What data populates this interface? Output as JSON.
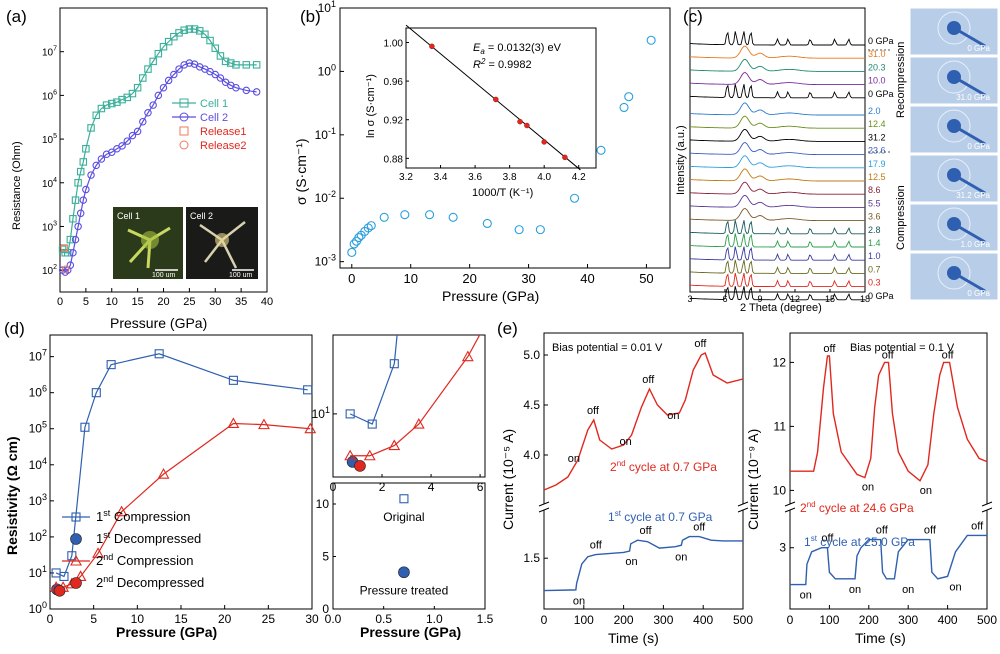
{
  "panel_labels": {
    "a": "(a)",
    "b": "(b)",
    "c": "(c)",
    "d": "(d)",
    "e": "(e)"
  },
  "colors": {
    "teal": "#3aaf9a",
    "purple": "#5b4ee0",
    "blue": "#2f5fb0",
    "red": "#e0281e",
    "cyan": "#2a9fdf",
    "orange": "#e8791e",
    "pink": "#f07858"
  },
  "chart_data": [
    {
      "id": "a",
      "type": "line",
      "xlabel": "Pressure (GPa)",
      "ylabel": "Resistance (Ohm)",
      "xlim": [
        0,
        40
      ],
      "xticks": [
        0,
        5,
        10,
        15,
        20,
        25,
        30,
        35,
        40
      ],
      "ylim_log10": [
        1.5,
        8
      ],
      "yticks": [
        "10^2",
        "10^3",
        "10^4",
        "10^5",
        "10^6",
        "10^7"
      ],
      "series": [
        {
          "name": "Cell 1",
          "color": "#3aaf9a",
          "marker": "square",
          "x": [
            0.5,
            1,
            1.5,
            2,
            2.5,
            3,
            3.5,
            4,
            4.5,
            5,
            6,
            7,
            8,
            9,
            10,
            11,
            12,
            13,
            14,
            15,
            16,
            17,
            18,
            19,
            20,
            21,
            22,
            23,
            24,
            25,
            26,
            27,
            28,
            29,
            30,
            31,
            32,
            33,
            34,
            36,
            38
          ],
          "y": [
            300,
            250,
            250,
            500,
            1500,
            4000,
            10000,
            18000,
            30000,
            60000,
            180000,
            350000,
            500000,
            600000,
            650000,
            700000,
            800000,
            900000,
            1100000,
            1500000,
            2500000,
            4000000,
            6000000,
            9000000,
            13000000,
            17000000,
            22000000,
            27000000,
            31000000,
            33000000,
            33000000,
            30000000,
            25000000,
            18000000,
            12000000,
            8000000,
            6000000,
            5500000,
            5000000,
            5000000,
            5000000
          ]
        },
        {
          "name": "Cell 2",
          "color": "#5b4ee0",
          "marker": "circle",
          "x": [
            0.5,
            1,
            1.5,
            2,
            2.5,
            3,
            3.5,
            4,
            4.5,
            5,
            6,
            7,
            8,
            9,
            10,
            11,
            12,
            13,
            14,
            15,
            16,
            17,
            18,
            19,
            20,
            21,
            22,
            23,
            24,
            25,
            26,
            27,
            28,
            29,
            30,
            31,
            32,
            33,
            34,
            36,
            38
          ],
          "y": [
            100,
            90,
            100,
            130,
            250,
            500,
            1000,
            2000,
            4000,
            7000,
            15000,
            25000,
            35000,
            45000,
            50000,
            60000,
            70000,
            90000,
            120000,
            150000,
            250000,
            400000,
            600000,
            1000000,
            1500000,
            2200000,
            3000000,
            4000000,
            5000000,
            5500000,
            5200000,
            4500000,
            4000000,
            3500000,
            3000000,
            2500000,
            2000000,
            1700000,
            1500000,
            1300000,
            1200000
          ]
        },
        {
          "name": "Release1",
          "color": "#f07858",
          "marker": "square",
          "x": [
            0.8
          ],
          "y": [
            320
          ]
        },
        {
          "name": "Release2",
          "color": "#f07858",
          "marker": "circle",
          "x": [
            1.1
          ],
          "y": [
            105
          ]
        }
      ],
      "inset_labels": [
        "Cell 1",
        "Cell 2"
      ],
      "inset_scale": "100 um"
    },
    {
      "id": "b",
      "type": "scatter",
      "xlabel": "Pressure (GPa)",
      "ylabel": "σ (S·cm⁻¹)",
      "xlim": [
        -2,
        54
      ],
      "xticks": [
        0,
        10,
        20,
        30,
        40,
        50
      ],
      "ylim_log10": [
        -3.1,
        1
      ],
      "yticks": [
        "10^-3",
        "10^-2",
        "10^-1",
        "10^0",
        "10^1"
      ],
      "series": [
        {
          "name": "σ",
          "color": "#2a9fdf",
          "x": [
            0,
            0.4,
            0.8,
            1.2,
            1.6,
            2.2,
            2.8,
            3.3,
            5.5,
            9,
            13.2,
            17.2,
            23,
            28.4,
            32,
            37.8,
            42.3,
            46.2,
            47,
            50.8
          ],
          "y": [
            0.0014,
            0.0019,
            0.0021,
            0.0024,
            0.0026,
            0.003,
            0.0034,
            0.0037,
            0.005,
            0.0055,
            0.0055,
            0.005,
            0.004,
            0.0032,
            0.0032,
            0.01,
            0.057,
            0.27,
            0.4,
            3.1
          ]
        }
      ],
      "inset": {
        "xlabel": "1000/T (K⁻¹)",
        "ylabel": "ln σ (S·cm⁻¹)",
        "xlim": [
          3.2,
          4.3
        ],
        "xticks": [
          "3.2",
          "3.4",
          "3.6",
          "3.8",
          "4.0",
          "4.2"
        ],
        "ylim": [
          0.87,
          1.015
        ],
        "yticks": [
          "0.88",
          "0.92",
          "0.96",
          "1.00"
        ],
        "x": [
          3.35,
          3.72,
          3.86,
          3.9,
          4.0,
          4.12
        ],
        "y": [
          0.996,
          0.941,
          0.918,
          0.914,
          0.897,
          0.881
        ],
        "fit_line": {
          "x": [
            3.2,
            4.21
          ],
          "y": [
            1.018,
            0.868
          ]
        },
        "ea_label": "E",
        "ea_sub": "a",
        "ea_value": " = 0.0132(3) eV",
        "r2_label": "R",
        "r2_sup": "2",
        "r2_value": " = 0.9982"
      }
    },
    {
      "id": "c",
      "type": "line",
      "xlabel": "2 Theta (degree)",
      "ylabel": "Intensity (a.u.)",
      "xlim": [
        3,
        18
      ],
      "xticks": [
        "3",
        "6",
        "9",
        "12",
        "15",
        "18"
      ],
      "pressure_labels": [
        "0 GPa",
        "31.0",
        "20.3",
        "10.0",
        "0 GPa",
        "2.0",
        "12.4",
        "31.2",
        "23.6",
        "17.9",
        "12.5",
        "8.6",
        "5.5",
        "3.6",
        "2.8",
        "1.4",
        "1.0",
        "0.7",
        "0.3",
        "0 GPa"
      ],
      "pressure_colors": [
        "#000000",
        "#e8791e",
        "#1f8a70",
        "#7a2c9e",
        "#000000",
        "#2b7bd0",
        "#6a8f1a",
        "#000000",
        "#3a5fc0",
        "#2a9fdf",
        "#c07a10",
        "#8a1f3a",
        "#5a3a9a",
        "#7a5a2a",
        "#1a5a5a",
        "#2b9f4a",
        "#3a3aa0",
        "#6a6a20",
        "#e0281e",
        "#000000"
      ],
      "group_labels": [
        "Recompression",
        "Compression"
      ],
      "images": [
        "0 GPa",
        "31.0 GPa",
        "0 GPa",
        "31.2 GPa",
        "1.0 GPa",
        "0 GPa"
      ]
    },
    {
      "id": "d",
      "type": "line",
      "xlabel": "Pressure (GPa)",
      "ylabel": "Resistivity (Ω cm)",
      "xlim": [
        0,
        30
      ],
      "xticks": [
        "0",
        "5",
        "10",
        "15",
        "20",
        "25",
        "30"
      ],
      "ylim_log10": [
        0,
        7.6
      ],
      "yticks": [
        "10^0",
        "10^1",
        "10^2",
        "10^3",
        "10^4",
        "10^5",
        "10^6",
        "10^7"
      ],
      "series": [
        {
          "name": "1st Compression",
          "color": "#2f5fb0",
          "marker": "square",
          "x": [
            0.7,
            1.6,
            2.5,
            4,
            5.3,
            7,
            12.5,
            21,
            29.5
          ],
          "y": [
            10,
            8,
            30,
            110000,
            1000000,
            6000000,
            12000000,
            2200000,
            1200000
          ]
        },
        {
          "name": "1st Decompressed",
          "color": "#2f5fb0",
          "marker": "dot",
          "x": [
            0.8
          ],
          "y": [
            3.5
          ]
        },
        {
          "name": "2nd Compression",
          "color": "#e0281e",
          "marker": "triangle",
          "x": [
            0.7,
            1.5,
            2.5,
            3.5,
            5.5,
            8.2,
            13,
            21,
            24.5,
            29.8
          ],
          "y": [
            4,
            4,
            5,
            8,
            35,
            500,
            5500,
            140000,
            130000,
            100000
          ]
        },
        {
          "name": "2nd Decompressed",
          "color": "#e0281e",
          "marker": "dot",
          "x": [
            1.1
          ],
          "y": [
            3.2
          ]
        }
      ],
      "legend": [
        {
          "pre": "1",
          "sup": "st",
          "post": " Compression"
        },
        {
          "pre": "1",
          "sup": "st",
          "post": " Decompressed"
        },
        {
          "pre": "2",
          "sup": "nd",
          "post": " Compression"
        },
        {
          "pre": "2",
          "sup": "nd",
          "post": " Decompressed"
        }
      ],
      "zoom": {
        "xticks": [
          "0",
          "2",
          "4",
          "6"
        ],
        "ytick": "10^1"
      },
      "bottom": {
        "xlim": [
          0,
          1.5
        ],
        "xticks": [
          "0.0",
          "0.5",
          "1.0",
          "1.5"
        ],
        "ylim": [
          0,
          12
        ],
        "yticks": [
          "0",
          "5",
          "10"
        ],
        "points": [
          {
            "label": "Original",
            "x": 0.7,
            "y": 10.5,
            "marker": "square"
          },
          {
            "label": "Pressure treated",
            "x": 0.7,
            "y": 3.5,
            "marker": "dot"
          }
        ],
        "xlabel": "Pressure (GPa)"
      }
    },
    {
      "id": "e1",
      "type": "line",
      "title": "Bias potential = 0.01 V",
      "xlabel": "Time (s)",
      "ylabel": "Current (10⁻⁵ A)",
      "xlim": [
        0,
        500
      ],
      "xticks": [
        "0",
        "100",
        "200",
        "300",
        "400",
        "500"
      ],
      "upper_yticks": [
        "4.0",
        "4.5",
        "5.0"
      ],
      "lower_ytick": "1.5",
      "series": [
        {
          "name": "2nd cycle at 0.7 GPa",
          "color": "#e0281e",
          "x": [
            0,
            30,
            60,
            85,
            110,
            125,
            140,
            170,
            200,
            220,
            245,
            265,
            285,
            310,
            340,
            355,
            375,
            395,
            405,
            425,
            460,
            500
          ],
          "y": [
            3.65,
            3.7,
            3.78,
            3.95,
            4.25,
            4.35,
            4.15,
            4.06,
            4.1,
            4.2,
            4.48,
            4.66,
            4.5,
            4.4,
            4.42,
            4.55,
            4.85,
            5.0,
            5.02,
            4.8,
            4.72,
            4.76
          ]
        },
        {
          "name": "1st cycle at 0.7 GPa",
          "color": "#2f5fb0",
          "x": [
            0,
            80,
            82,
            95,
            110,
            130,
            200,
            215,
            218,
            235,
            260,
            290,
            330,
            345,
            348,
            365,
            390,
            420,
            450,
            500
          ],
          "y": [
            1.05,
            1.06,
            1.15,
            1.42,
            1.52,
            1.55,
            1.58,
            1.6,
            1.7,
            1.75,
            1.73,
            1.64,
            1.66,
            1.68,
            1.75,
            1.8,
            1.8,
            1.75,
            1.74,
            1.74
          ]
        }
      ],
      "on_off": {
        "on": "on",
        "off": "off"
      },
      "red_cycle": {
        "pre": "2",
        "sup": "nd",
        "post": " cycle at 0.7 GPa"
      },
      "blue_cycle": {
        "pre": "1",
        "sup": "st",
        "post": " cycle at 0.7 GPa"
      }
    },
    {
      "id": "e2",
      "type": "line",
      "title": "Bias potential = 0.1 V",
      "xlabel": "Time (s)",
      "ylabel": "Current (10⁻⁹ A)",
      "xlim": [
        0,
        500
      ],
      "xticks": [
        "0",
        "100",
        "200",
        "300",
        "400",
        "500"
      ],
      "upper_yticks": [
        "10",
        "11",
        "12"
      ],
      "lower_ytick": "3",
      "series": [
        {
          "name": "2nd cycle at 24.6 GPa",
          "color": "#e0281e",
          "x": [
            0,
            40,
            60,
            70,
            85,
            95,
            100,
            110,
            130,
            170,
            190,
            205,
            215,
            225,
            240,
            250,
            260,
            275,
            300,
            330,
            350,
            365,
            380,
            390,
            405,
            425,
            450,
            480,
            500
          ],
          "y": [
            10.3,
            10.3,
            10.3,
            10.6,
            11.6,
            12.1,
            12.1,
            11.2,
            10.6,
            10.25,
            10.2,
            10.5,
            11.3,
            11.8,
            12.0,
            12.0,
            11.2,
            10.6,
            10.3,
            10.15,
            10.4,
            11.2,
            11.8,
            12.0,
            12.0,
            11.3,
            10.8,
            10.5,
            10.45
          ]
        },
        {
          "name": "1st cycle at 25.0 GPa",
          "color": "#2f5fb0",
          "x": [
            0,
            40,
            43,
            55,
            80,
            95,
            100,
            115,
            140,
            165,
            170,
            180,
            200,
            230,
            235,
            245,
            265,
            275,
            300,
            355,
            360,
            375,
            400,
            420,
            450,
            480,
            500
          ],
          "y": [
            2.55,
            2.55,
            2.8,
            2.95,
            3.0,
            3.0,
            2.7,
            2.62,
            2.62,
            2.62,
            2.9,
            3.0,
            3.1,
            3.1,
            2.7,
            2.62,
            2.62,
            2.95,
            3.1,
            3.1,
            2.7,
            2.62,
            2.65,
            2.95,
            3.15,
            3.15,
            3.15
          ]
        }
      ],
      "on_off": {
        "on": "on",
        "off": "off"
      },
      "red_cycle": {
        "pre": "2",
        "sup": "nd",
        "post": " cycle at 24.6 GPa"
      },
      "blue_cycle": {
        "pre": "1",
        "sup": "st",
        "post": " cycle at 25.0 GPa"
      }
    }
  ]
}
